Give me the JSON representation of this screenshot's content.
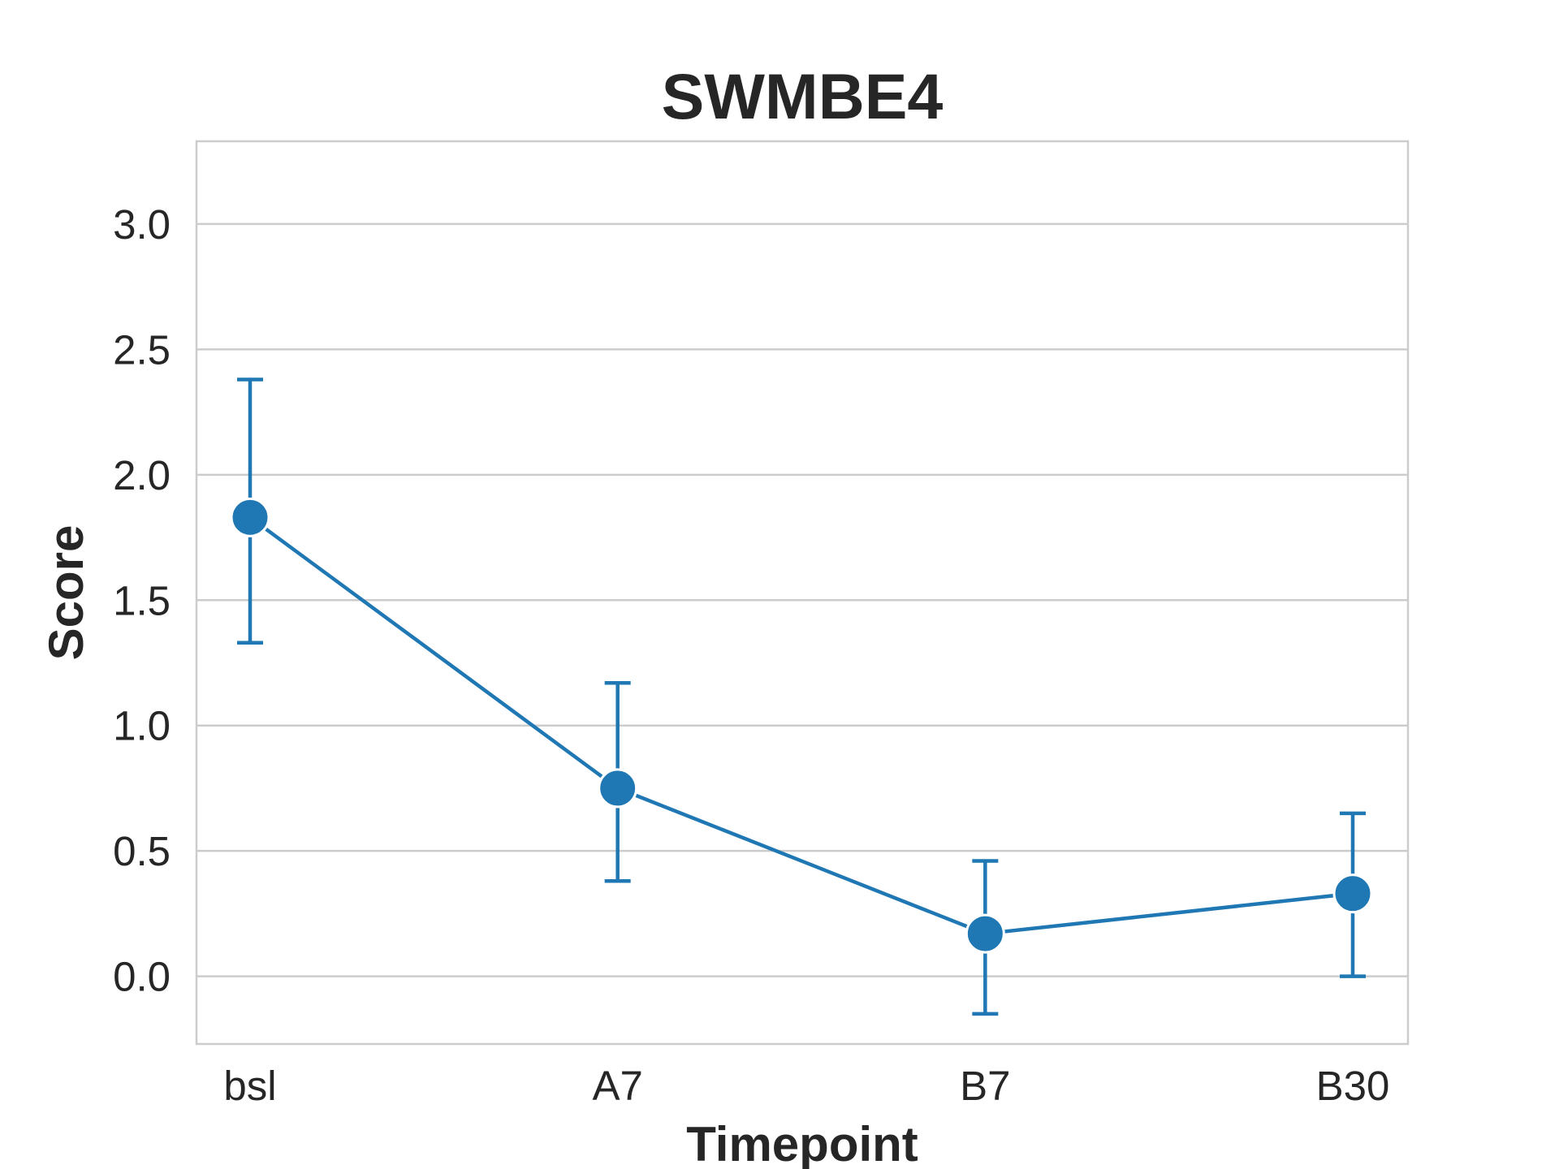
{
  "chart_data": {
    "type": "line",
    "title": "SWMBE4",
    "xlabel": "Timepoint",
    "ylabel": "Score",
    "categories": [
      "bsl",
      "A7",
      "B7",
      "B30"
    ],
    "series": [
      {
        "values": [
          1.83,
          0.75,
          0.17,
          0.33
        ],
        "error_low": [
          1.33,
          0.38,
          -0.15,
          0.0
        ],
        "error_high": [
          2.38,
          1.17,
          0.46,
          0.65
        ]
      }
    ],
    "ylim": [
      -0.27,
      3.33
    ],
    "yticks": [
      "0.0",
      "0.5",
      "1.0",
      "1.5",
      "2.0",
      "2.5",
      "3.0"
    ],
    "grid": true,
    "color": "#1f77b4"
  }
}
